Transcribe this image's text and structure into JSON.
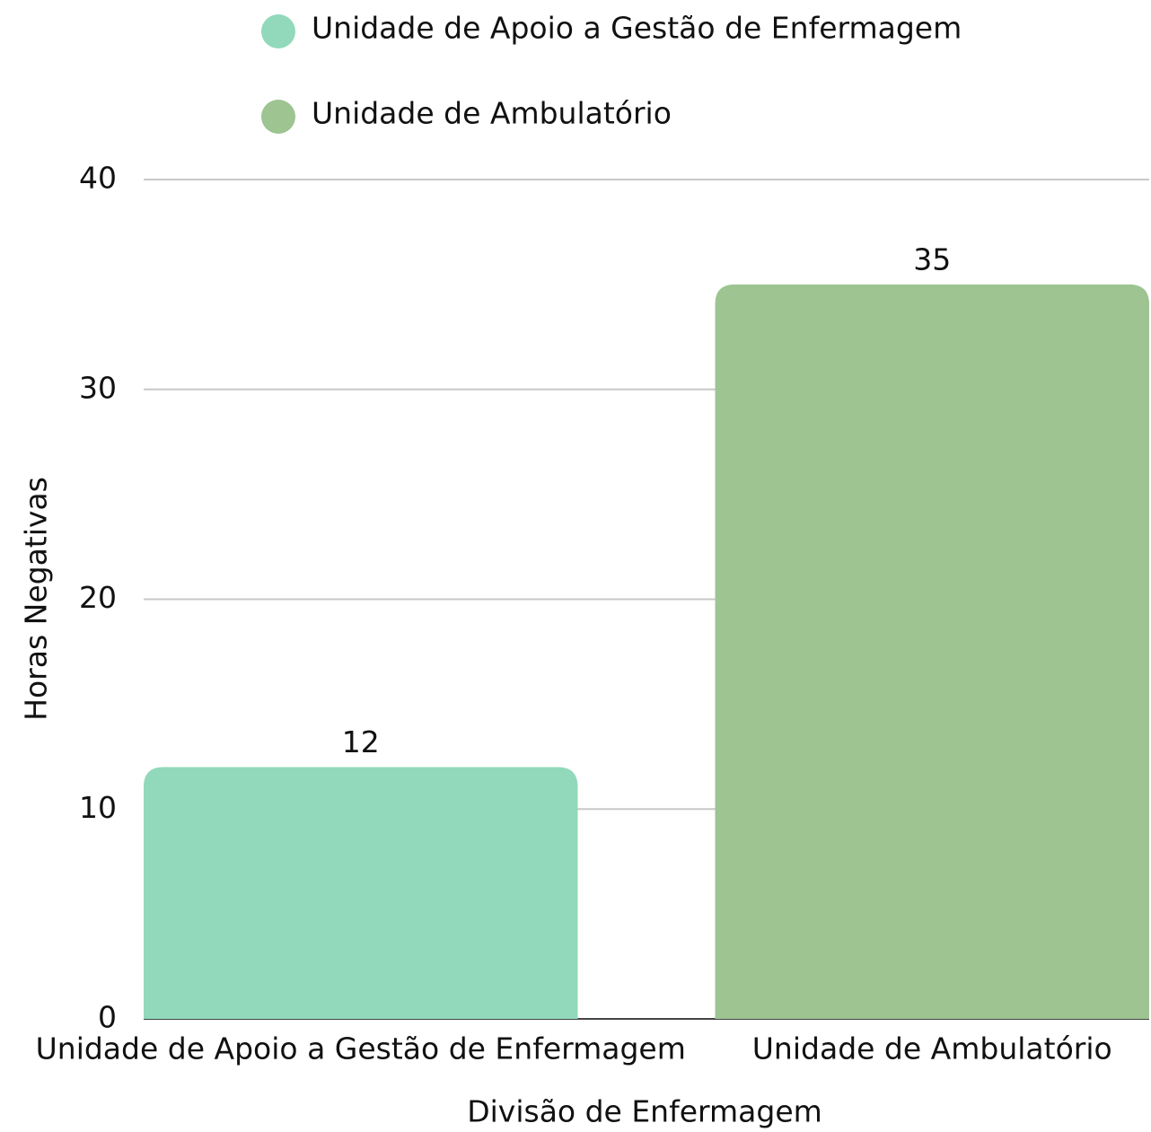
{
  "chart_data": {
    "type": "bar",
    "categories": [
      "Unidade de Apoio a Gestão de Enfermagem",
      "Unidade de Ambulatório"
    ],
    "series": [
      {
        "name": "Unidade de Apoio a Gestão de Enfermagem",
        "color": "#91d9ba",
        "values": [
          12,
          null
        ]
      },
      {
        "name": "Unidade de Ambulatório",
        "color": "#9dc491",
        "values": [
          null,
          35
        ]
      }
    ],
    "xlabel": "Divisão de Enfermagem",
    "ylabel": "Horas Negativas",
    "ylim": [
      0,
      40
    ],
    "yticks": [
      0,
      10,
      20,
      30,
      40
    ],
    "grid": true,
    "legend": "top"
  }
}
